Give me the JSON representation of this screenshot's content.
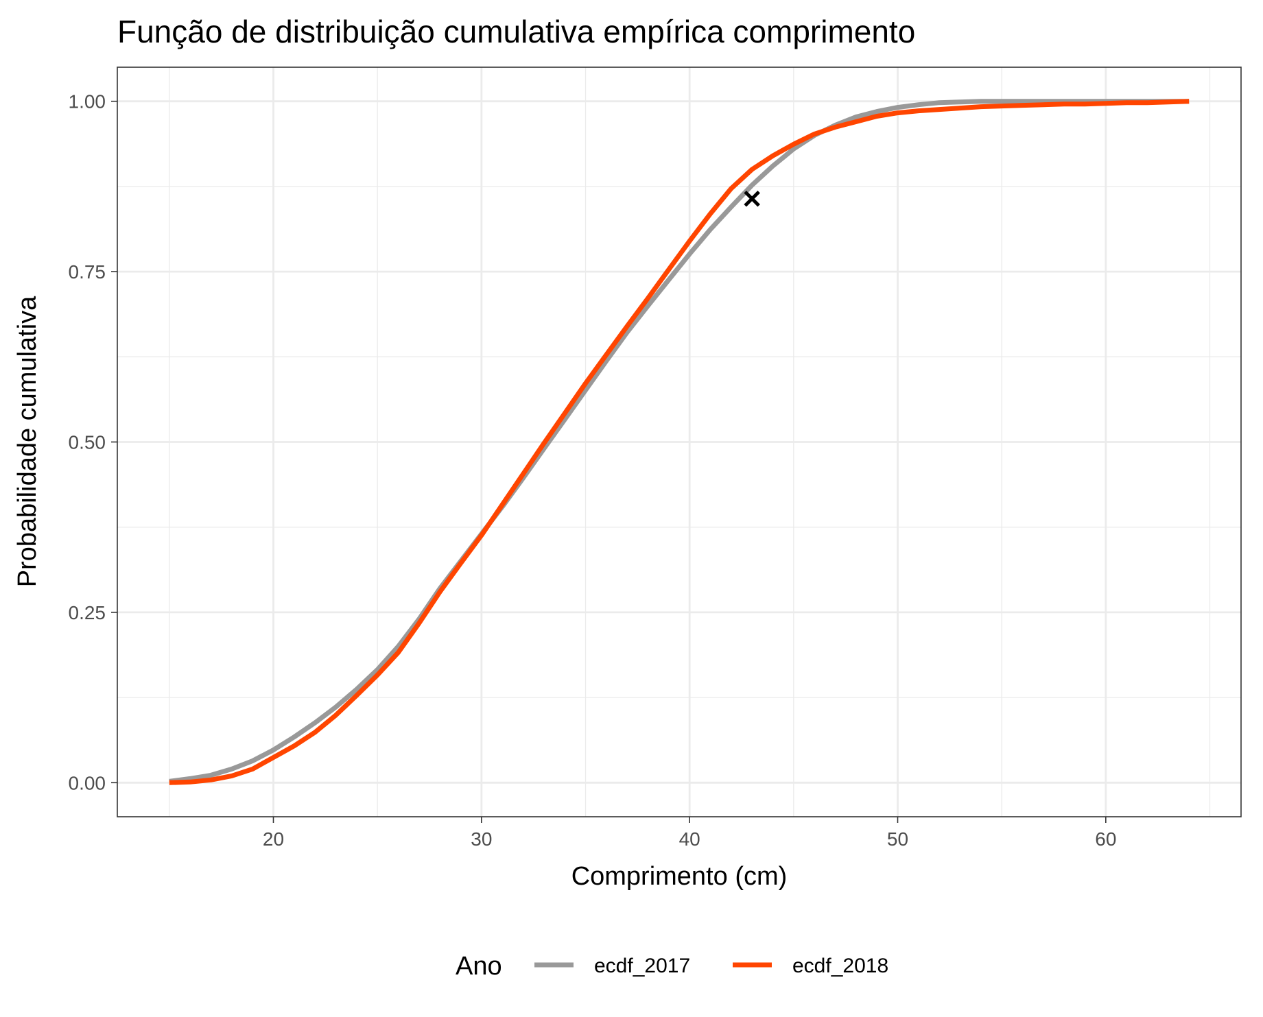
{
  "colors": {
    "ecdf_2017": "#999999",
    "ecdf_2018": "#ff4500",
    "grid": "#ebebeb",
    "panel_border": "#333333",
    "marker": "#000000"
  },
  "chart_data": {
    "type": "line",
    "title": "Função de distribuição cumulativa empírica comprimento",
    "xlabel": "Comprimento (cm)",
    "ylabel": "Probabilidade cumulativa",
    "xlim": [
      12.5,
      66.5
    ],
    "ylim": [
      -0.05,
      1.05
    ],
    "x_ticks": [
      20,
      30,
      40,
      50,
      60
    ],
    "x_tick_labels": [
      "20",
      "30",
      "40",
      "50",
      "60"
    ],
    "y_ticks": [
      0,
      0.25,
      0.5,
      0.75,
      1.0
    ],
    "y_tick_labels": [
      "0.00",
      "0.25",
      "0.50",
      "0.75",
      "1.00"
    ],
    "grid": true,
    "legend": {
      "title": "Ano",
      "position": "bottom"
    },
    "series": [
      {
        "name": "ecdf_2017",
        "x": [
          15,
          16,
          17,
          18,
          19,
          20,
          21,
          22,
          23,
          24,
          25,
          26,
          27,
          28,
          29,
          30,
          31,
          32,
          33,
          34,
          35,
          36,
          37,
          38,
          39,
          40,
          41,
          42,
          43,
          44,
          45,
          46,
          47,
          48,
          49,
          50,
          51,
          52,
          53,
          54,
          55,
          56,
          57,
          58,
          59,
          60,
          61,
          62,
          63,
          64
        ],
        "y": [
          0.002,
          0.006,
          0.011,
          0.02,
          0.032,
          0.048,
          0.067,
          0.088,
          0.111,
          0.137,
          0.166,
          0.2,
          0.24,
          0.285,
          0.325,
          0.365,
          0.405,
          0.447,
          0.49,
          0.533,
          0.576,
          0.619,
          0.661,
          0.7,
          0.738,
          0.776,
          0.812,
          0.845,
          0.877,
          0.905,
          0.93,
          0.95,
          0.965,
          0.977,
          0.985,
          0.991,
          0.995,
          0.998,
          0.999,
          1.0,
          1.0,
          1.0,
          1.0,
          1.0,
          1.0,
          1.0,
          1.0,
          1.0,
          1.0,
          1.0
        ]
      },
      {
        "name": "ecdf_2018",
        "x": [
          15,
          16,
          17,
          18,
          19,
          20,
          21,
          22,
          23,
          24,
          25,
          26,
          27,
          28,
          29,
          30,
          31,
          32,
          33,
          34,
          35,
          36,
          37,
          38,
          39,
          40,
          41,
          42,
          43,
          44,
          45,
          46,
          47,
          48,
          49,
          50,
          51,
          52,
          53,
          54,
          55,
          56,
          57,
          58,
          59,
          60,
          61,
          62,
          63,
          64
        ],
        "y": [
          0.0,
          0.001,
          0.004,
          0.01,
          0.02,
          0.037,
          0.054,
          0.074,
          0.099,
          0.128,
          0.158,
          0.191,
          0.234,
          0.28,
          0.322,
          0.363,
          0.408,
          0.453,
          0.498,
          0.542,
          0.586,
          0.628,
          0.67,
          0.711,
          0.753,
          0.795,
          0.835,
          0.872,
          0.9,
          0.92,
          0.937,
          0.952,
          0.962,
          0.97,
          0.978,
          0.983,
          0.986,
          0.988,
          0.99,
          0.992,
          0.993,
          0.994,
          0.995,
          0.996,
          0.996,
          0.997,
          0.998,
          0.998,
          0.999,
          1.0
        ]
      }
    ],
    "annotations": [
      {
        "marker": "x",
        "x": 43,
        "y": 0.857
      }
    ]
  }
}
